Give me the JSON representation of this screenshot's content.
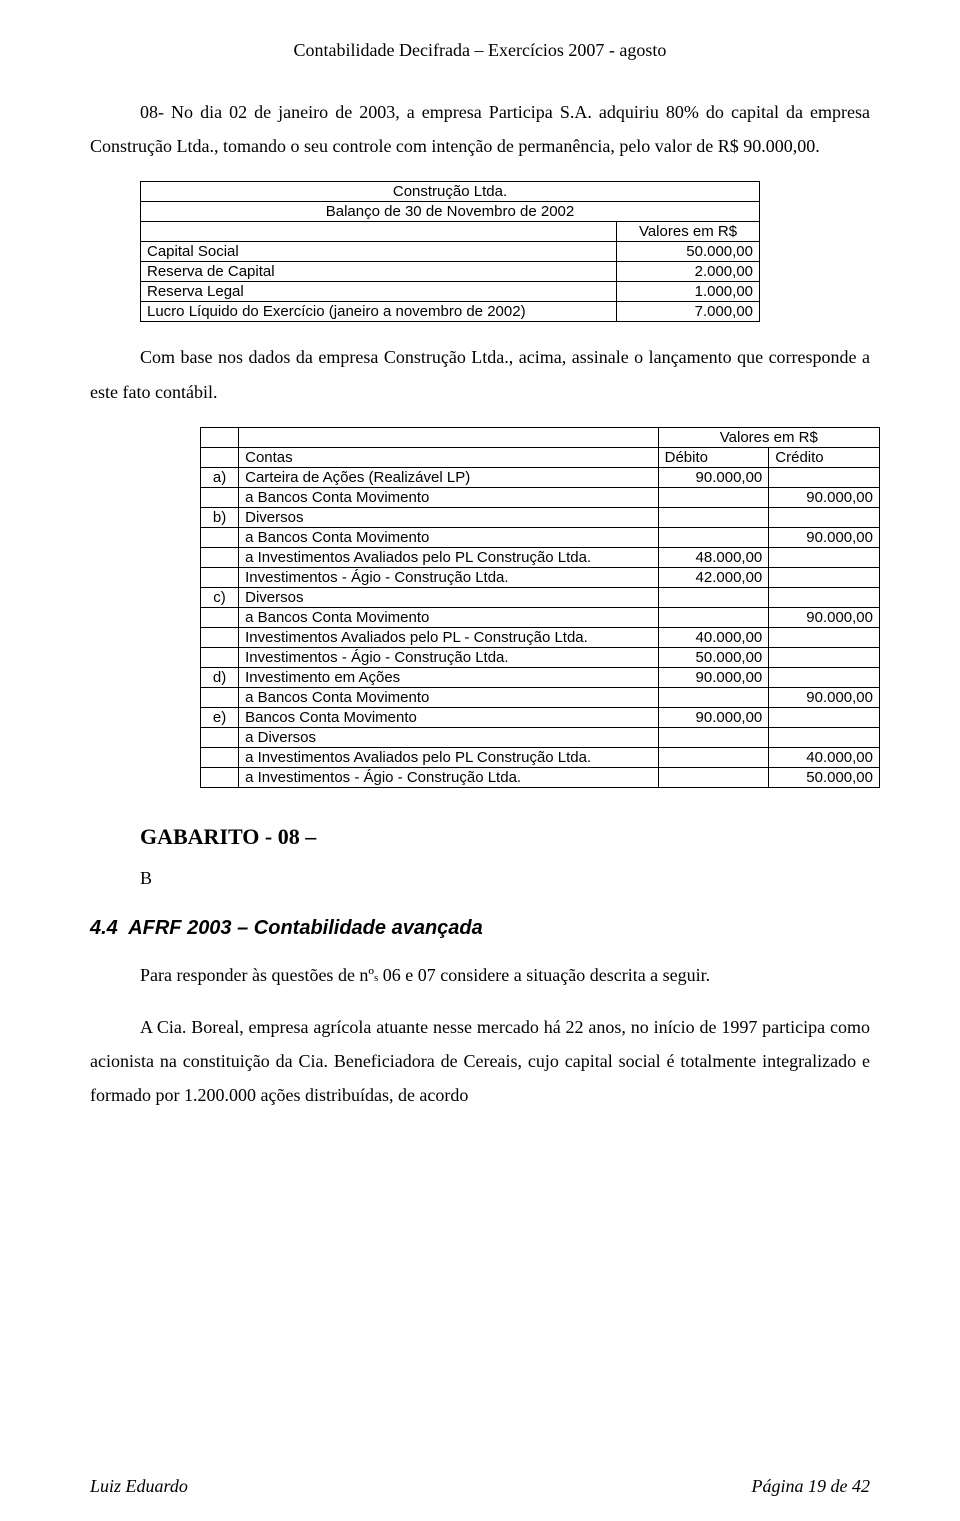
{
  "header": "Contabilidade Decifrada – Exercícios 2007 - agosto",
  "intro1": "08- No dia 02 de janeiro de 2003, a empresa Participa S.A. adquiriu 80% do capital da empresa Construção Ltda., tomando o seu controle com intenção de permanência, pelo valor de R$ 90.000,00.",
  "table1": {
    "title": "Construção Ltda.",
    "subtitle": "Balanço de 30 de Novembro de 2002",
    "valhdr": "Valores em R$",
    "rows": [
      {
        "label": "Capital Social",
        "value": "50.000,00"
      },
      {
        "label": "Reserva de Capital",
        "value": "2.000,00"
      },
      {
        "label": "Reserva Legal",
        "value": "1.000,00"
      },
      {
        "label": "Lucro Líquido do Exercício (janeiro a novembro de 2002)",
        "value": "7.000,00"
      }
    ]
  },
  "intro2": "Com base nos dados da empresa Construção Ltda., acima, assinale o lançamento que corresponde a este fato contábil.",
  "table2": {
    "valhdr": "Valores em R$",
    "contas": "Contas",
    "debito": "Débito",
    "credito": "Crédito",
    "rows": [
      {
        "tag": "a)",
        "label": "Carteira de Ações (Realizável LP)",
        "deb": "90.000,00",
        "cre": ""
      },
      {
        "tag": "",
        "label": "a Bancos Conta Movimento",
        "deb": "",
        "cre": "90.000,00"
      },
      {
        "tag": "b)",
        "label": "Diversos",
        "deb": "",
        "cre": ""
      },
      {
        "tag": "",
        "label": "a Bancos Conta Movimento",
        "deb": "",
        "cre": "90.000,00"
      },
      {
        "tag": "",
        "label": "a Investimentos Avaliados pelo PL Construção Ltda.",
        "deb": "48.000,00",
        "cre": ""
      },
      {
        "tag": "",
        "label": "Investimentos - Ágio - Construção Ltda.",
        "deb": "42.000,00",
        "cre": ""
      },
      {
        "tag": "c)",
        "label": "Diversos",
        "deb": "",
        "cre": ""
      },
      {
        "tag": "",
        "label": "a Bancos Conta Movimento",
        "deb": "",
        "cre": "90.000,00"
      },
      {
        "tag": "",
        "label": "Investimentos Avaliados pelo PL - Construção Ltda.",
        "deb": "40.000,00",
        "cre": ""
      },
      {
        "tag": "",
        "label": "Investimentos - Ágio - Construção Ltda.",
        "deb": "50.000,00",
        "cre": ""
      },
      {
        "tag": "d)",
        "label": "Investimento em Ações",
        "deb": "90.000,00",
        "cre": ""
      },
      {
        "tag": "",
        "label": "a Bancos Conta Movimento",
        "deb": "",
        "cre": "90.000,00"
      },
      {
        "tag": "e)",
        "label": "Bancos Conta Movimento",
        "deb": "90.000,00",
        "cre": ""
      },
      {
        "tag": "",
        "label": "a Diversos",
        "deb": "",
        "cre": ""
      },
      {
        "tag": "",
        "label": "a Investimentos Avaliados pelo PL Construção Ltda.",
        "deb": "",
        "cre": "40.000,00"
      },
      {
        "tag": "",
        "label": "a Investimentos - Ágio - Construção Ltda.",
        "deb": "",
        "cre": "50.000,00"
      }
    ]
  },
  "gabarito": "GABARITO - 08 –",
  "answer": "B",
  "section": {
    "num": "4.4",
    "title": "AFRF 2003 – Contabilidade avançada"
  },
  "para1a": "Para responder às questões de nº",
  "para1b": "s",
  "para1c": " 06 e 07 considere a situação descrita a seguir.",
  "para2": "A Cia. Boreal, empresa agrícola atuante nesse mercado há 22 anos, no início de 1997 participa como acionista na constituição da Cia. Beneficiadora de Cereais, cujo capital social é totalmente integralizado e formado por 1.200.000 ações distribuídas, de acordo",
  "footer": {
    "left": "Luiz Eduardo",
    "right": "Página 19 de 42"
  }
}
